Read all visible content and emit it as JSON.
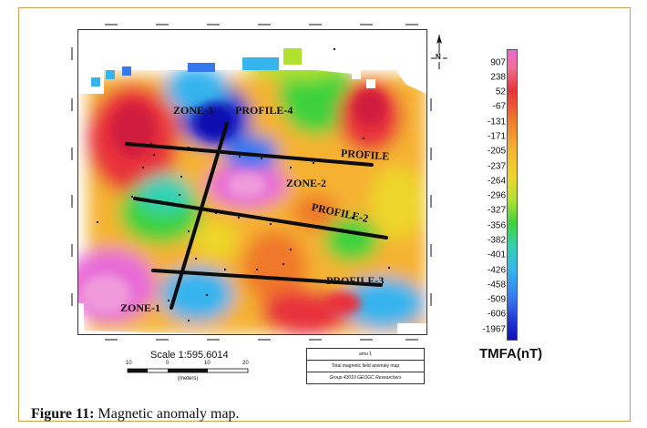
{
  "figure": {
    "label": "Figure 11:",
    "caption": "Magnetic anomaly map."
  },
  "map_labels": {
    "zone3": "ZONE-3",
    "profile4": "PROFILE-4",
    "profile": "PROFILE",
    "zone2": "ZONE-2",
    "profile2": "PROFILE-2",
    "profile3": "PROFILE-3",
    "zone1": "ZONE-1"
  },
  "north_arrow": {
    "label": "N"
  },
  "legend": {
    "title": "TMFA(nT)",
    "values": [
      "907",
      "238",
      "52",
      "-67",
      "-131",
      "-171",
      "-205",
      "-237",
      "-264",
      "-296",
      "-327",
      "-356",
      "-382",
      "-401",
      "-426",
      "-458",
      "-509",
      "-606",
      "-1967"
    ],
    "colors": [
      "#e86ad8",
      "#f07090",
      "#e8323a",
      "#f0782a",
      "#f5b230",
      "#eed62a",
      "#b0e030",
      "#3cd23c",
      "#30d2b4",
      "#35b4ee",
      "#3478f0",
      "#2032d2",
      "#1010b0"
    ]
  },
  "scale": {
    "title": "Scale 1:595.6014",
    "ticks": [
      "10",
      "0",
      "10",
      "20"
    ],
    "unit": "(meters)"
  },
  "info_box": {
    "line1": "amu 1",
    "line2": "Total magnetic field anomaly map",
    "line3": "Group 43010 GEOGC Researchers"
  }
}
